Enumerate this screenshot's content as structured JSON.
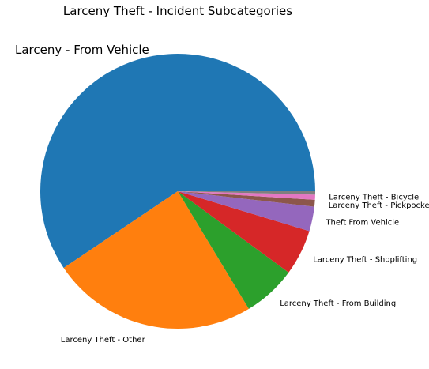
{
  "chart_data": {
    "type": "pie",
    "title": "Larceny Theft - Incident Subcategories",
    "slices": [
      {
        "label": "Larceny - From Vehicle",
        "value": 59.6,
        "color": "#1f77b4"
      },
      {
        "label": "Larceny Theft - Other",
        "value": 24.3,
        "color": "#ff7f0e"
      },
      {
        "label": "Larceny Theft - From Building",
        "value": 6.3,
        "color": "#2ca02c"
      },
      {
        "label": "Larceny Theft - Shoplifting",
        "value": 5.4,
        "color": "#d62728"
      },
      {
        "label": "Theft From Vehicle",
        "value": 2.9,
        "color": "#9467bd"
      },
      {
        "label": "Larceny Theft - Pickpocket",
        "value": 0.8,
        "color": "#8c564b"
      },
      {
        "label": "Larceny Theft - Bicycle",
        "value": 0.6,
        "color": "#e377c2"
      },
      {
        "label": "",
        "value": 0.4,
        "color": "#7f7f7f"
      }
    ],
    "start_angle": "0 degrees (3 o'clock)",
    "direction": "counterclockwise",
    "legend": "none"
  }
}
